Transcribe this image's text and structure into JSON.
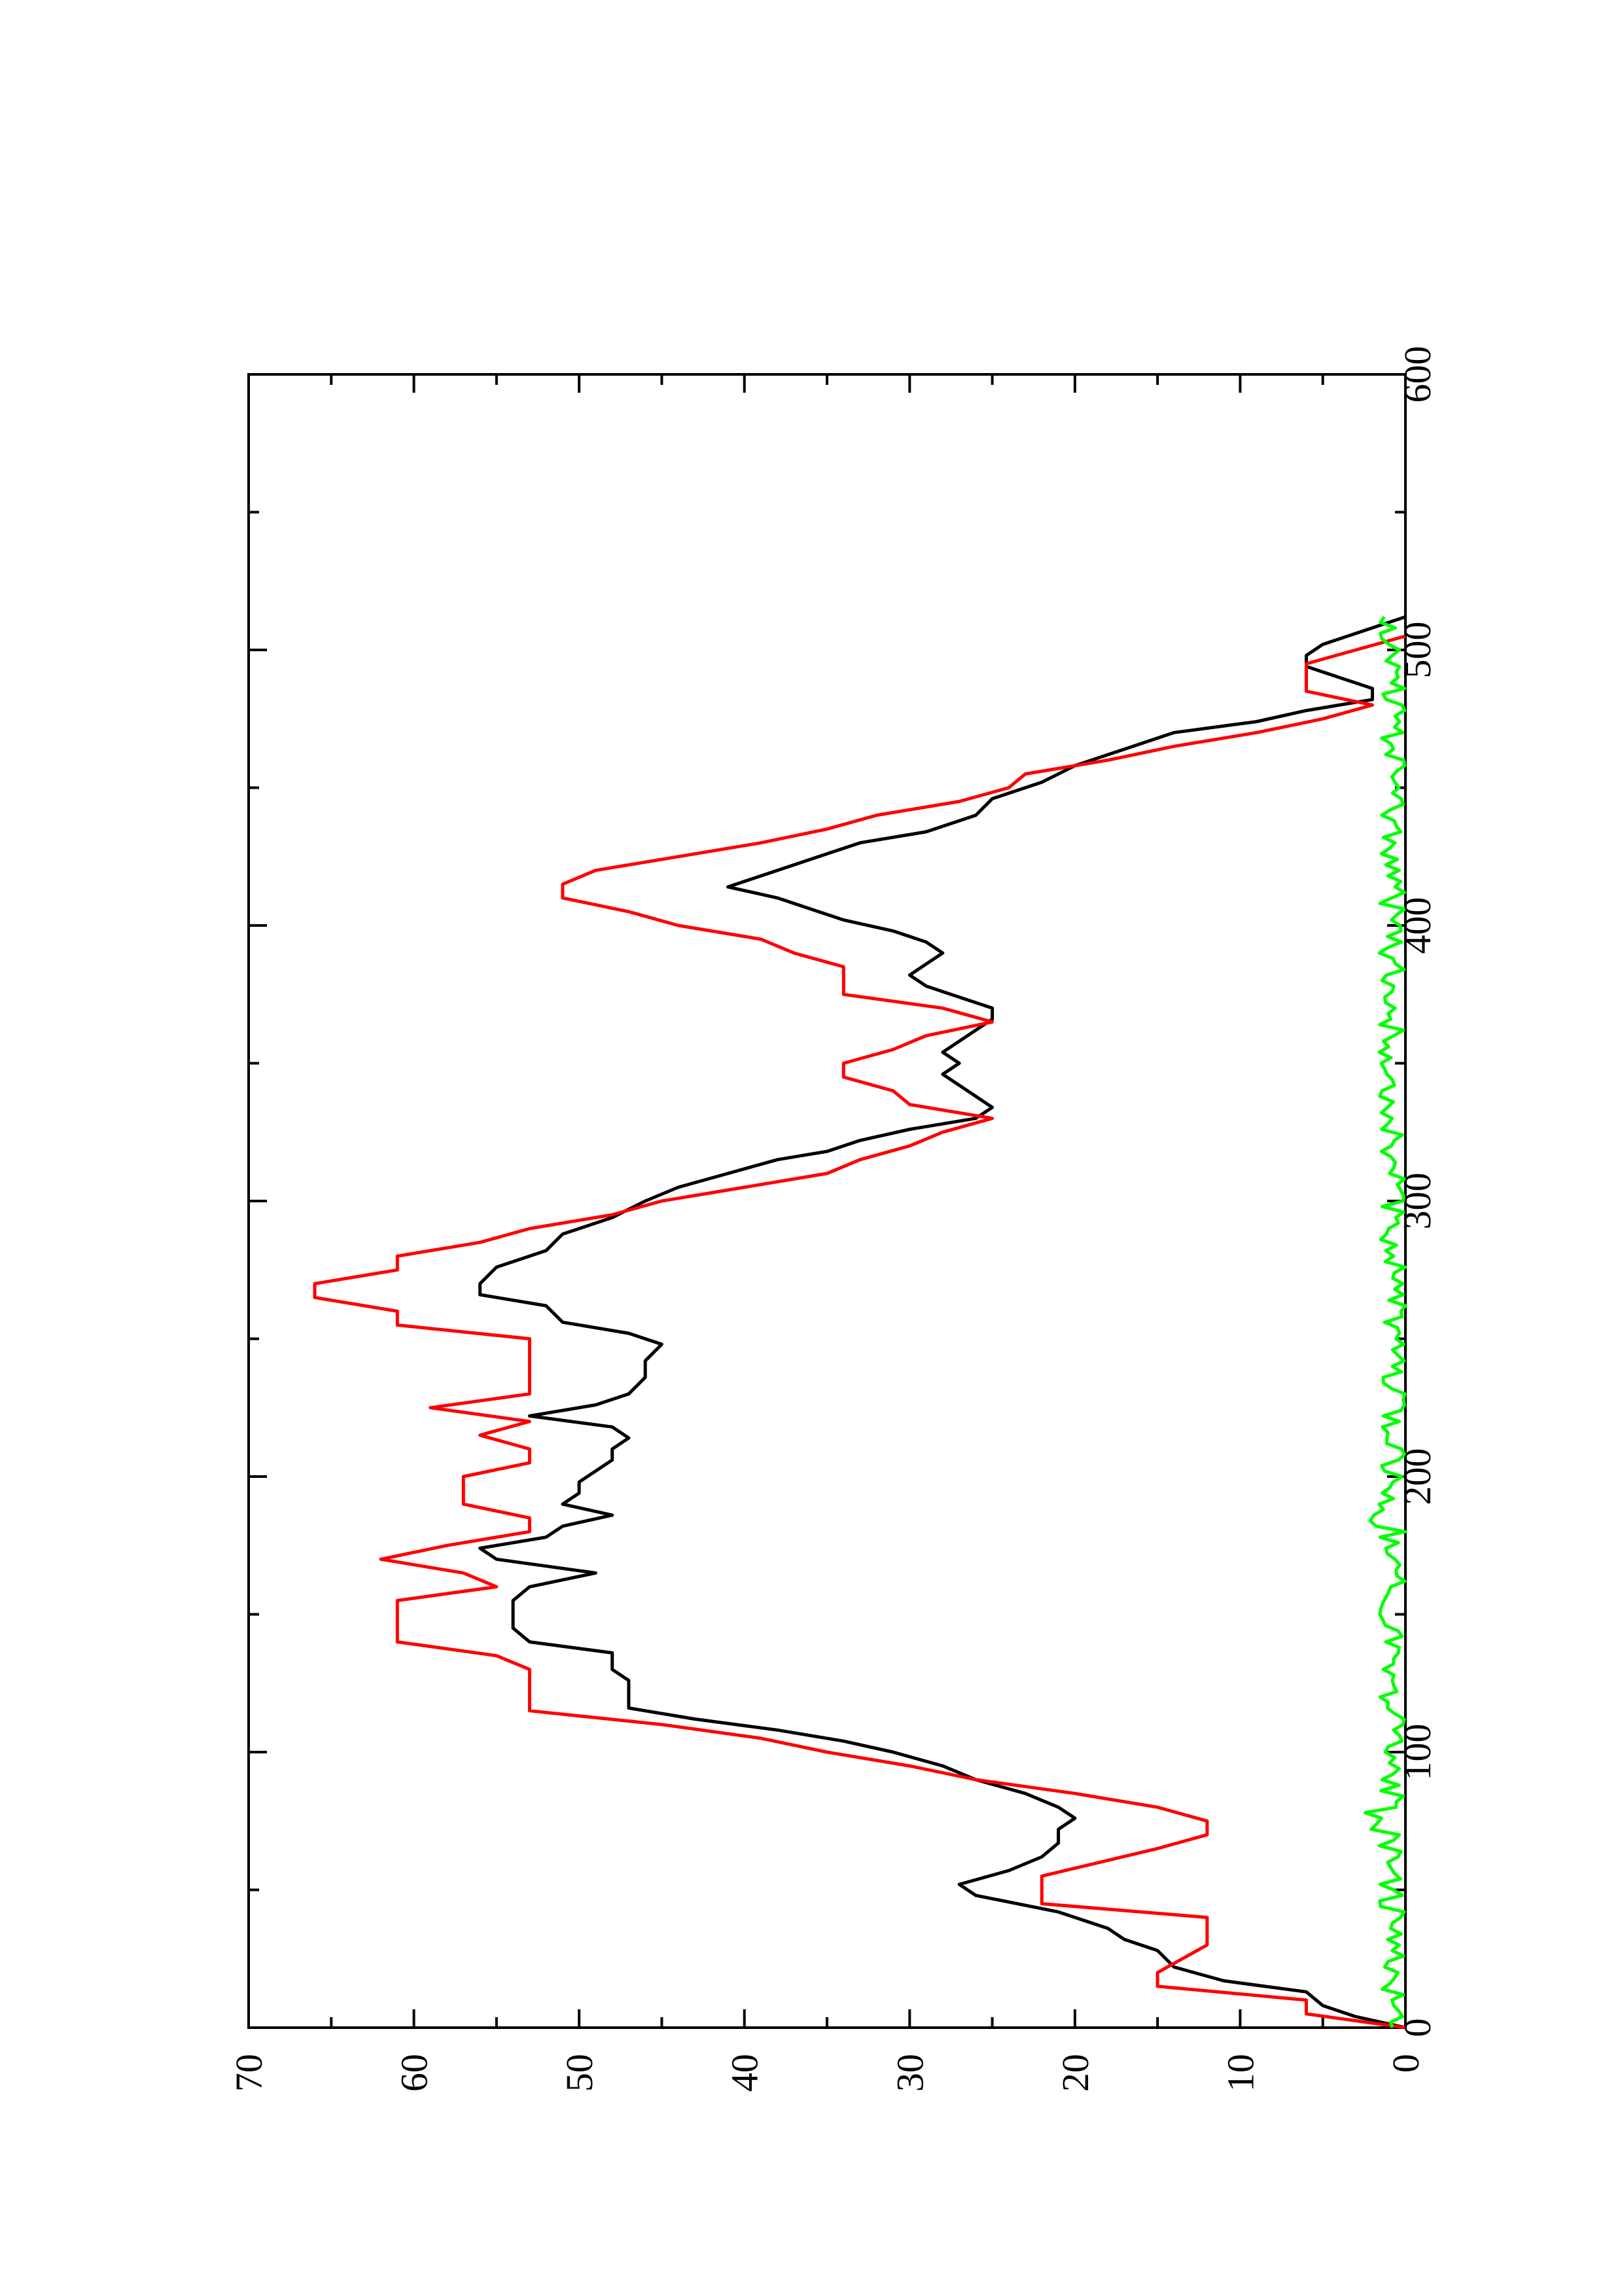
{
  "chart_data": {
    "type": "line",
    "title": "",
    "xlabel": "",
    "ylabel": "",
    "orientation": "rotated-90-clockwise",
    "xlim": [
      0,
      600
    ],
    "ylim": [
      0,
      70
    ],
    "x_ticks": [
      0,
      100,
      200,
      300,
      400,
      500,
      600
    ],
    "x_tick_labels": [
      "0",
      "100",
      "200",
      "300",
      "400",
      "500",
      "600"
    ],
    "x_minor_ticks": [
      50,
      150,
      250,
      350,
      450,
      550
    ],
    "y_ticks": [
      0,
      10,
      20,
      30,
      40,
      50,
      60,
      70
    ],
    "y_tick_labels": [
      "0",
      "10",
      "20",
      "30",
      "40",
      "50",
      "60",
      "70"
    ],
    "y_minor_ticks": [
      5,
      15,
      25,
      35,
      45,
      55,
      65
    ],
    "grid": false,
    "legend": "none",
    "series": [
      {
        "color": "#000000",
        "style": "line",
        "points": [
          [
            0,
            0
          ],
          [
            4,
            3
          ],
          [
            8,
            5
          ],
          [
            13,
            6
          ],
          [
            17,
            11
          ],
          [
            22,
            14
          ],
          [
            28,
            15
          ],
          [
            32,
            17
          ],
          [
            36,
            18
          ],
          [
            42,
            21
          ],
          [
            48,
            26
          ],
          [
            52,
            27
          ],
          [
            57,
            24
          ],
          [
            62,
            22
          ],
          [
            67,
            21
          ],
          [
            72,
            21
          ],
          [
            76,
            20
          ],
          [
            80,
            21
          ],
          [
            85,
            23
          ],
          [
            90,
            26
          ],
          [
            95,
            28
          ],
          [
            100,
            31
          ],
          [
            104,
            34
          ],
          [
            108,
            38
          ],
          [
            112,
            43
          ],
          [
            116,
            47
          ],
          [
            120,
            47
          ],
          [
            126,
            47
          ],
          [
            130,
            48
          ],
          [
            136,
            48
          ],
          [
            140,
            53
          ],
          [
            145,
            54
          ],
          [
            150,
            54
          ],
          [
            155,
            54
          ],
          [
            160,
            53
          ],
          [
            165,
            49
          ],
          [
            170,
            55
          ],
          [
            174,
            56
          ],
          [
            178,
            52
          ],
          [
            182,
            51
          ],
          [
            186,
            48
          ],
          [
            190,
            51
          ],
          [
            194,
            50
          ],
          [
            198,
            50
          ],
          [
            202,
            49
          ],
          [
            206,
            48
          ],
          [
            210,
            48
          ],
          [
            214,
            47
          ],
          [
            218,
            48
          ],
          [
            222,
            53
          ],
          [
            226,
            49
          ],
          [
            230,
            47
          ],
          [
            236,
            46
          ],
          [
            242,
            46
          ],
          [
            248,
            45
          ],
          [
            252,
            47
          ],
          [
            256,
            51
          ],
          [
            262,
            52
          ],
          [
            266,
            56
          ],
          [
            270,
            56
          ],
          [
            276,
            55
          ],
          [
            282,
            52
          ],
          [
            288,
            51
          ],
          [
            294,
            48
          ],
          [
            300,
            46
          ],
          [
            305,
            44
          ],
          [
            310,
            41
          ],
          [
            315,
            38
          ],
          [
            318,
            35
          ],
          [
            322,
            33
          ],
          [
            326,
            30
          ],
          [
            330,
            26
          ],
          [
            334,
            25
          ],
          [
            338,
            26
          ],
          [
            342,
            27
          ],
          [
            346,
            28
          ],
          [
            350,
            27
          ],
          [
            354,
            28
          ],
          [
            358,
            27
          ],
          [
            362,
            26
          ],
          [
            366,
            25
          ],
          [
            370,
            25
          ],
          [
            374,
            27
          ],
          [
            378,
            29
          ],
          [
            382,
            30
          ],
          [
            386,
            29
          ],
          [
            390,
            28
          ],
          [
            394,
            29
          ],
          [
            398,
            31
          ],
          [
            402,
            34
          ],
          [
            406,
            36
          ],
          [
            410,
            38
          ],
          [
            414,
            41
          ],
          [
            418,
            39
          ],
          [
            422,
            37
          ],
          [
            426,
            35
          ],
          [
            430,
            33
          ],
          [
            434,
            29
          ],
          [
            440,
            26
          ],
          [
            446,
            25
          ],
          [
            452,
            22
          ],
          [
            458,
            20
          ],
          [
            464,
            17
          ],
          [
            470,
            14
          ],
          [
            474,
            9
          ],
          [
            478,
            6
          ],
          [
            482,
            2
          ],
          [
            486,
            2
          ],
          [
            490,
            4
          ],
          [
            494,
            6
          ],
          [
            498,
            6
          ],
          [
            502,
            5
          ],
          [
            506,
            3
          ],
          [
            510,
            1
          ],
          [
            512,
            0
          ]
        ]
      },
      {
        "color": "#ff0000",
        "style": "step",
        "points": [
          [
            0,
            0
          ],
          [
            5,
            6
          ],
          [
            10,
            6
          ],
          [
            15,
            15
          ],
          [
            20,
            15
          ],
          [
            30,
            12
          ],
          [
            40,
            12
          ],
          [
            45,
            22
          ],
          [
            55,
            22
          ],
          [
            65,
            15
          ],
          [
            70,
            12
          ],
          [
            75,
            12
          ],
          [
            80,
            15
          ],
          [
            85,
            20
          ],
          [
            90,
            26
          ],
          [
            95,
            30
          ],
          [
            100,
            35
          ],
          [
            105,
            39
          ],
          [
            110,
            45
          ],
          [
            115,
            53
          ],
          [
            120,
            53
          ],
          [
            130,
            53
          ],
          [
            135,
            55
          ],
          [
            140,
            61
          ],
          [
            150,
            61
          ],
          [
            155,
            61
          ],
          [
            160,
            55
          ],
          [
            165,
            57
          ],
          [
            170,
            62
          ],
          [
            175,
            58
          ],
          [
            180,
            53
          ],
          [
            185,
            53
          ],
          [
            190,
            57
          ],
          [
            195,
            57
          ],
          [
            200,
            57
          ],
          [
            205,
            53
          ],
          [
            210,
            53
          ],
          [
            215,
            56
          ],
          [
            220,
            53
          ],
          [
            225,
            59
          ],
          [
            230,
            53
          ],
          [
            240,
            53
          ],
          [
            250,
            53
          ],
          [
            255,
            61
          ],
          [
            260,
            61
          ],
          [
            265,
            66
          ],
          [
            270,
            66
          ],
          [
            275,
            61
          ],
          [
            280,
            61
          ],
          [
            285,
            56
          ],
          [
            290,
            53
          ],
          [
            295,
            48
          ],
          [
            300,
            45
          ],
          [
            305,
            40
          ],
          [
            310,
            35
          ],
          [
            315,
            33
          ],
          [
            320,
            30
          ],
          [
            325,
            28
          ],
          [
            330,
            25
          ],
          [
            335,
            30
          ],
          [
            340,
            31
          ],
          [
            345,
            34
          ],
          [
            350,
            34
          ],
          [
            355,
            31
          ],
          [
            360,
            29
          ],
          [
            365,
            25
          ],
          [
            370,
            28
          ],
          [
            375,
            34
          ],
          [
            380,
            34
          ],
          [
            385,
            34
          ],
          [
            390,
            37
          ],
          [
            395,
            39
          ],
          [
            400,
            44
          ],
          [
            405,
            47
          ],
          [
            410,
            51
          ],
          [
            415,
            51
          ],
          [
            420,
            49
          ],
          [
            425,
            44
          ],
          [
            430,
            39
          ],
          [
            435,
            35
          ],
          [
            440,
            32
          ],
          [
            445,
            27
          ],
          [
            450,
            24
          ],
          [
            455,
            23
          ],
          [
            460,
            18
          ],
          [
            465,
            14
          ],
          [
            470,
            9
          ],
          [
            475,
            5
          ],
          [
            480,
            2
          ],
          [
            485,
            6
          ],
          [
            490,
            6
          ],
          [
            495,
            6
          ],
          [
            500,
            3
          ],
          [
            505,
            0
          ]
        ]
      },
      {
        "color": "#00ff00",
        "style": "noisy-line",
        "note_amplitude": "0-2",
        "x_range": [
          0,
          512
        ]
      }
    ]
  }
}
